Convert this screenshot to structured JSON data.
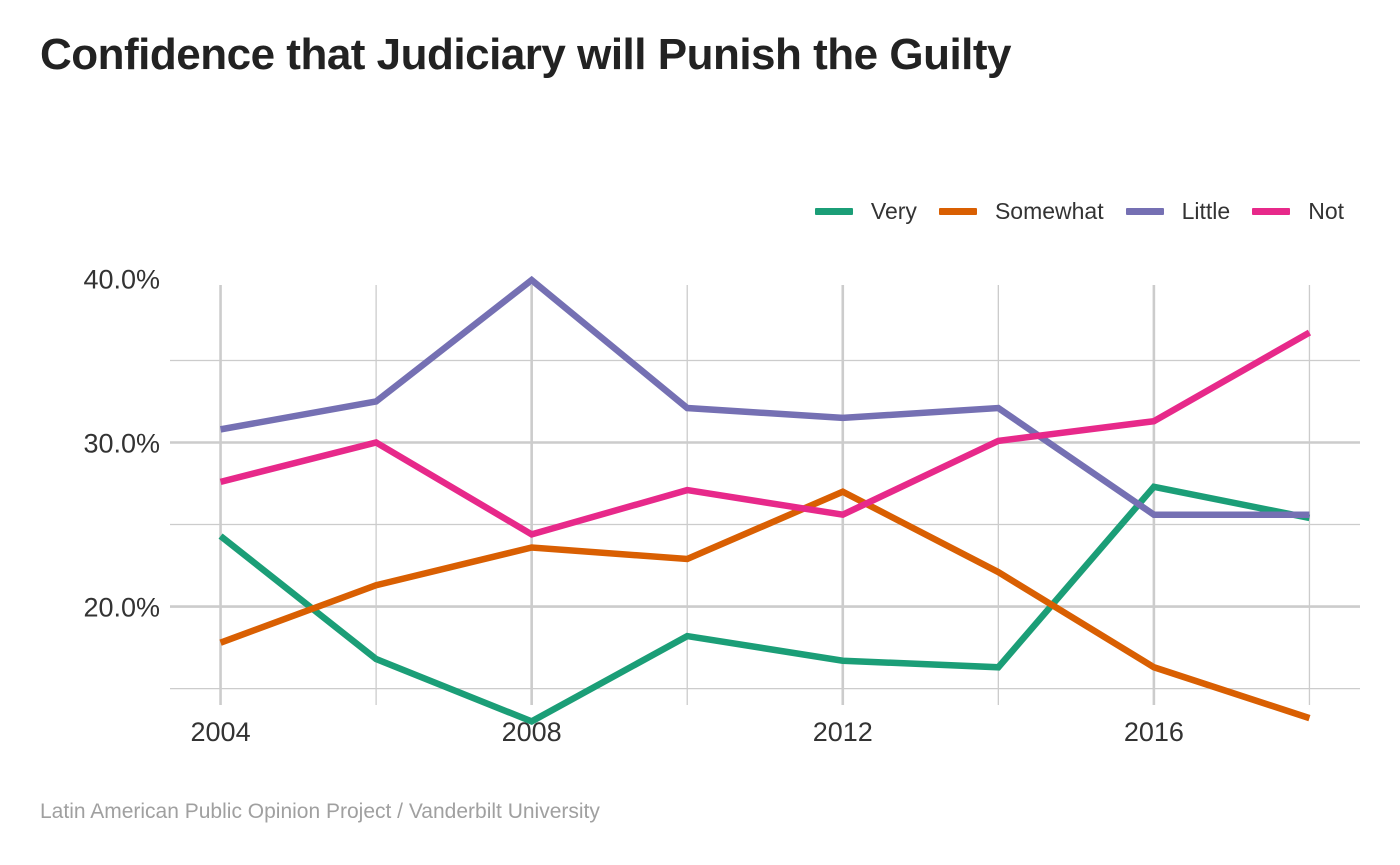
{
  "title": "Confidence that Judiciary will Punish the Guilty",
  "caption": "Latin American Public Opinion Project / Vanderbilt University",
  "colors": {
    "Very": "#1b9e77",
    "Somewhat": "#d95f02",
    "Little": "#7570b3",
    "Not": "#e7298a",
    "grid": "#cccccc",
    "axis_text": "#333333"
  },
  "chart_data": {
    "type": "line",
    "title": "Confidence that Judiciary will Punish the Guilty",
    "xlabel": "",
    "ylabel": "",
    "x": [
      2004,
      2006,
      2008,
      2010,
      2012,
      2014,
      2016,
      2018
    ],
    "x_ticks": [
      {
        "value": 2004,
        "label": "2004"
      },
      {
        "value": 2008,
        "label": "2008"
      },
      {
        "value": 2012,
        "label": "2012"
      },
      {
        "value": 2016,
        "label": "2016"
      }
    ],
    "y_ticks": [
      {
        "value": 40,
        "label": "40.0%"
      },
      {
        "value": 30,
        "label": "30.0%"
      },
      {
        "value": 20,
        "label": "20.0%"
      }
    ],
    "xlim": [
      2003.35,
      2018.65
    ],
    "ylim": [
      14,
      39.6
    ],
    "grid": true,
    "legend_position": "top-right",
    "series": [
      {
        "name": "Very",
        "values": [
          24.3,
          16.8,
          13.0,
          18.2,
          16.7,
          16.3,
          27.3,
          25.4
        ]
      },
      {
        "name": "Somewhat",
        "values": [
          17.8,
          21.3,
          23.6,
          22.9,
          27.0,
          22.1,
          16.3,
          13.2
        ]
      },
      {
        "name": "Little",
        "values": [
          30.8,
          32.5,
          39.9,
          32.1,
          31.5,
          32.1,
          25.6,
          25.6
        ]
      },
      {
        "name": "Not",
        "values": [
          27.6,
          30.0,
          24.4,
          27.1,
          25.6,
          30.1,
          31.3,
          36.7
        ]
      }
    ]
  }
}
